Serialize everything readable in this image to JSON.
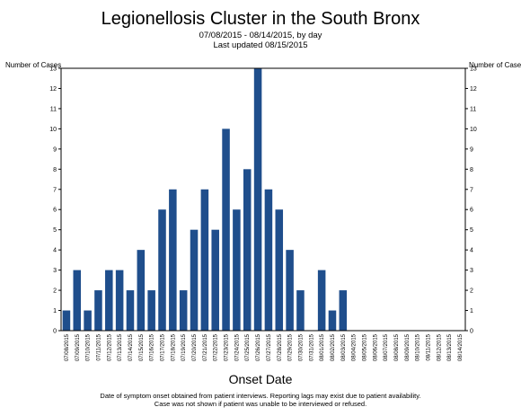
{
  "chart_data": {
    "type": "bar",
    "title": "Legionellosis Cluster in the South Bronx",
    "subtitle_lines": [
      "07/08/2015 - 08/14/2015, by day",
      "Last updated 08/15/2015"
    ],
    "xlabel": "Onset Date",
    "ylabel_left": "Number of Cases",
    "ylabel_right": "Number of Cases",
    "ylim": [
      0,
      13
    ],
    "yticks": [
      0,
      1,
      2,
      3,
      4,
      5,
      6,
      7,
      8,
      9,
      10,
      11,
      12,
      13
    ],
    "grid": false,
    "bar_color": "#1f4e8c",
    "categories": [
      "07/08/2015",
      "07/09/2015",
      "07/10/2015",
      "07/11/2015",
      "07/12/2015",
      "07/13/2015",
      "07/14/2015",
      "07/15/2015",
      "07/16/2015",
      "07/17/2015",
      "07/18/2015",
      "07/19/2015",
      "07/20/2015",
      "07/21/2015",
      "07/22/2015",
      "07/23/2015",
      "07/24/2015",
      "07/25/2015",
      "07/26/2015",
      "07/27/2015",
      "07/28/2015",
      "07/29/2015",
      "07/30/2015",
      "07/31/2015",
      "08/01/2015",
      "08/02/2015",
      "08/03/2015",
      "08/04/2015",
      "08/05/2015",
      "08/06/2015",
      "08/07/2015",
      "08/08/2015",
      "08/09/2015",
      "08/10/2015",
      "08/11/2015",
      "08/12/2015",
      "08/13/2015",
      "08/14/2015"
    ],
    "values": [
      1,
      3,
      1,
      2,
      3,
      3,
      2,
      4,
      2,
      6,
      7,
      2,
      5,
      7,
      5,
      10,
      6,
      8,
      13,
      7,
      6,
      4,
      2,
      0,
      3,
      1,
      2,
      0,
      0,
      0,
      0,
      0,
      0,
      0,
      0,
      0,
      0,
      0
    ]
  },
  "footnote": [
    "Date of symptom onset obtained from patient interviews. Reporting lags may exist due to patient availability.",
    "Case was not shown if patient was unable to be interviewed or refused."
  ]
}
